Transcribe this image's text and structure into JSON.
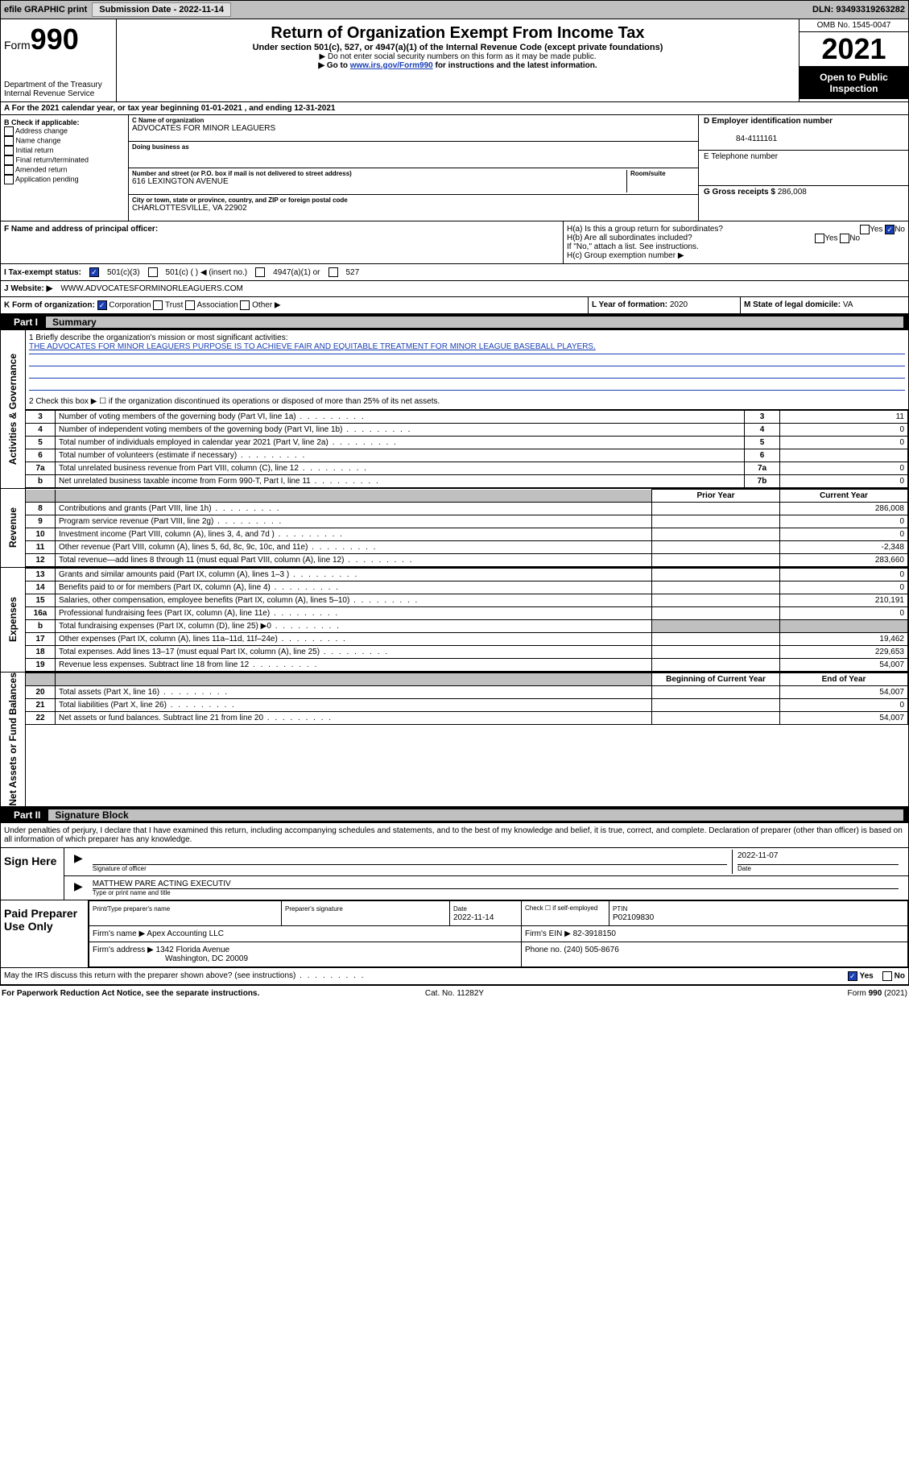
{
  "top_bar": {
    "efile_label": "efile GRAPHIC print",
    "submission_label": "Submission Date - 2022-11-14",
    "dln_label": "DLN: 93493319263282"
  },
  "header": {
    "form_label": "Form",
    "form_number": "990",
    "dept": "Department of the Treasury",
    "irs": "Internal Revenue Service",
    "title": "Return of Organization Exempt From Income Tax",
    "sub": "Under section 501(c), 527, or 4947(a)(1) of the Internal Revenue Code (except private foundations)",
    "note1": "▶ Do not enter social security numbers on this form as it may be made public.",
    "note2_pre": "▶ Go to ",
    "note2_link": "www.irs.gov/Form990",
    "note2_post": " for instructions and the latest information.",
    "omb": "OMB No. 1545-0047",
    "year": "2021",
    "open": "Open to Public Inspection"
  },
  "row_a": "For the 2021 calendar year, or tax year beginning 01-01-2021   , and ending 12-31-2021",
  "box_b": {
    "title": "B Check if applicable:",
    "items": [
      "Address change",
      "Name change",
      "Initial return",
      "Final return/terminated",
      "Amended return",
      "Application pending"
    ]
  },
  "box_c": {
    "name_lbl": "C Name of organization",
    "name": "ADVOCATES FOR MINOR LEAGUERS",
    "dba_lbl": "Doing business as",
    "addr_lbl": "Number and street (or P.O. box if mail is not delivered to street address)",
    "room_lbl": "Room/suite",
    "addr": "616 LEXINGTON AVENUE",
    "city_lbl": "City or town, state or province, country, and ZIP or foreign postal code",
    "city": "CHARLOTTESVILLE, VA  22902"
  },
  "box_d": {
    "lbl": "D Employer identification number",
    "val": "84-4111161"
  },
  "box_e": {
    "lbl": "E Telephone number",
    "val": ""
  },
  "box_g": {
    "lbl": "G Gross receipts $",
    "val": "286,008"
  },
  "box_f": "F  Name and address of principal officer:",
  "box_h": {
    "ha": "H(a)  Is this a group return for subordinates?",
    "hb": "H(b)  Are all subordinates included?",
    "hb_note": "If \"No,\" attach a list. See instructions.",
    "hc": "H(c)  Group exemption number ▶",
    "yes": "Yes",
    "no": "No"
  },
  "row_i_lbl": "I    Tax-exempt status:",
  "row_i_opts": [
    "501(c)(3)",
    "501(c) (  ) ◀ (insert no.)",
    "4947(a)(1) or",
    "527"
  ],
  "row_j_lbl": "J    Website: ▶",
  "row_j_val": "WWW.ADVOCATESFORMINORLEAGUERS.COM",
  "row_k_lbl": "K Form of organization:",
  "row_k_opts": [
    "Corporation",
    "Trust",
    "Association",
    "Other ▶"
  ],
  "row_l": {
    "lbl": "L Year of formation:",
    "val": "2020"
  },
  "row_m": {
    "lbl": "M State of legal domicile:",
    "val": "VA"
  },
  "part1": {
    "num": "Part I",
    "title": "Summary"
  },
  "mission": {
    "q1_lbl": "1   Briefly describe the organization's mission or most significant activities:",
    "q1_val": "THE ADVOCATES FOR MINOR LEAGUERS PURPOSE IS TO ACHIEVE FAIR AND EQUITABLE TREATMENT FOR MINOR LEAGUE BASEBALL PLAYERS.",
    "q2": "2   Check this box ▶ ☐  if the organization discontinued its operations or disposed of more than 25% of its net assets."
  },
  "gov_lines": [
    {
      "n": "3",
      "d": "Number of voting members of the governing body (Part VI, line 1a)",
      "box": "3",
      "v": "11"
    },
    {
      "n": "4",
      "d": "Number of independent voting members of the governing body (Part VI, line 1b)",
      "box": "4",
      "v": "0"
    },
    {
      "n": "5",
      "d": "Total number of individuals employed in calendar year 2021 (Part V, line 2a)",
      "box": "5",
      "v": "0"
    },
    {
      "n": "6",
      "d": "Total number of volunteers (estimate if necessary)",
      "box": "6",
      "v": ""
    },
    {
      "n": "7a",
      "d": "Total unrelated business revenue from Part VIII, column (C), line 12",
      "box": "7a",
      "v": "0"
    },
    {
      "n": "b",
      "d": "Net unrelated business taxable income from Form 990-T, Part I, line 11",
      "box": "7b",
      "v": "0"
    }
  ],
  "prior_hdr": "Prior Year",
  "current_hdr": "Current Year",
  "rev_lines": [
    {
      "n": "8",
      "d": "Contributions and grants (Part VIII, line 1h)",
      "p": "",
      "c": "286,008"
    },
    {
      "n": "9",
      "d": "Program service revenue (Part VIII, line 2g)",
      "p": "",
      "c": "0"
    },
    {
      "n": "10",
      "d": "Investment income (Part VIII, column (A), lines 3, 4, and 7d )",
      "p": "",
      "c": "0"
    },
    {
      "n": "11",
      "d": "Other revenue (Part VIII, column (A), lines 5, 6d, 8c, 9c, 10c, and 11e)",
      "p": "",
      "c": "-2,348"
    },
    {
      "n": "12",
      "d": "Total revenue—add lines 8 through 11 (must equal Part VIII, column (A), line 12)",
      "p": "",
      "c": "283,660"
    }
  ],
  "exp_lines": [
    {
      "n": "13",
      "d": "Grants and similar amounts paid (Part IX, column (A), lines 1–3 )",
      "p": "",
      "c": "0"
    },
    {
      "n": "14",
      "d": "Benefits paid to or for members (Part IX, column (A), line 4)",
      "p": "",
      "c": "0"
    },
    {
      "n": "15",
      "d": "Salaries, other compensation, employee benefits (Part IX, column (A), lines 5–10)",
      "p": "",
      "c": "210,191"
    },
    {
      "n": "16a",
      "d": "Professional fundraising fees (Part IX, column (A), line 11e)",
      "p": "",
      "c": "0"
    },
    {
      "n": "b",
      "d": "Total fundraising expenses (Part IX, column (D), line 25) ▶0",
      "p": "shade",
      "c": "shade"
    },
    {
      "n": "17",
      "d": "Other expenses (Part IX, column (A), lines 11a–11d, 11f–24e)",
      "p": "",
      "c": "19,462"
    },
    {
      "n": "18",
      "d": "Total expenses. Add lines 13–17 (must equal Part IX, column (A), line 25)",
      "p": "",
      "c": "229,653"
    },
    {
      "n": "19",
      "d": "Revenue less expenses. Subtract line 18 from line 12",
      "p": "",
      "c": "54,007"
    }
  ],
  "na_hdr_begin": "Beginning of Current Year",
  "na_hdr_end": "End of Year",
  "na_lines": [
    {
      "n": "20",
      "d": "Total assets (Part X, line 16)",
      "p": "",
      "c": "54,007"
    },
    {
      "n": "21",
      "d": "Total liabilities (Part X, line 26)",
      "p": "",
      "c": "0"
    },
    {
      "n": "22",
      "d": "Net assets or fund balances. Subtract line 21 from line 20",
      "p": "",
      "c": "54,007"
    }
  ],
  "vlabels": {
    "gov": "Activities & Governance",
    "rev": "Revenue",
    "exp": "Expenses",
    "na": "Net Assets or Fund Balances"
  },
  "part2": {
    "num": "Part II",
    "title": "Signature Block"
  },
  "sig": {
    "declare": "Under penalties of perjury, I declare that I have examined this return, including accompanying schedules and statements, and to the best of my knowledge and belief, it is true, correct, and complete. Declaration of preparer (other than officer) is based on all information of which preparer has any knowledge.",
    "sign_here": "Sign Here",
    "sig_officer_lbl": "Signature of officer",
    "date_lbl": "Date",
    "sig_date": "2022-11-07",
    "name_title": "MATTHEW PARE  ACTING EXECUTIV",
    "name_title_lbl": "Type or print name and title"
  },
  "paid": {
    "side": "Paid Preparer Use Only",
    "h1": "Print/Type preparer's name",
    "h2": "Preparer's signature",
    "h3": "Date",
    "h3v": "2022-11-14",
    "h4": "Check ☐ if self-employed",
    "h5": "PTIN",
    "h5v": "P02109830",
    "firm_name_lbl": "Firm's name    ▶",
    "firm_name": "Apex Accounting LLC",
    "firm_ein_lbl": "Firm's EIN ▶",
    "firm_ein": "82-3918150",
    "firm_addr_lbl": "Firm's address ▶",
    "firm_addr1": "1342 Florida Avenue",
    "firm_addr2": "Washington, DC  20009",
    "phone_lbl": "Phone no.",
    "phone": "(240) 505-8676"
  },
  "may_discuss": "May the IRS discuss this return with the preparer shown above? (see instructions)",
  "may_yes": "Yes",
  "may_no": "No",
  "footer": {
    "left": "For Paperwork Reduction Act Notice, see the separate instructions.",
    "mid": "Cat. No. 11282Y",
    "right": "Form 990 (2021)"
  },
  "colors": {
    "link": "#1a3fb5",
    "bar_gray": "#c0c0c0",
    "black": "#000000"
  }
}
